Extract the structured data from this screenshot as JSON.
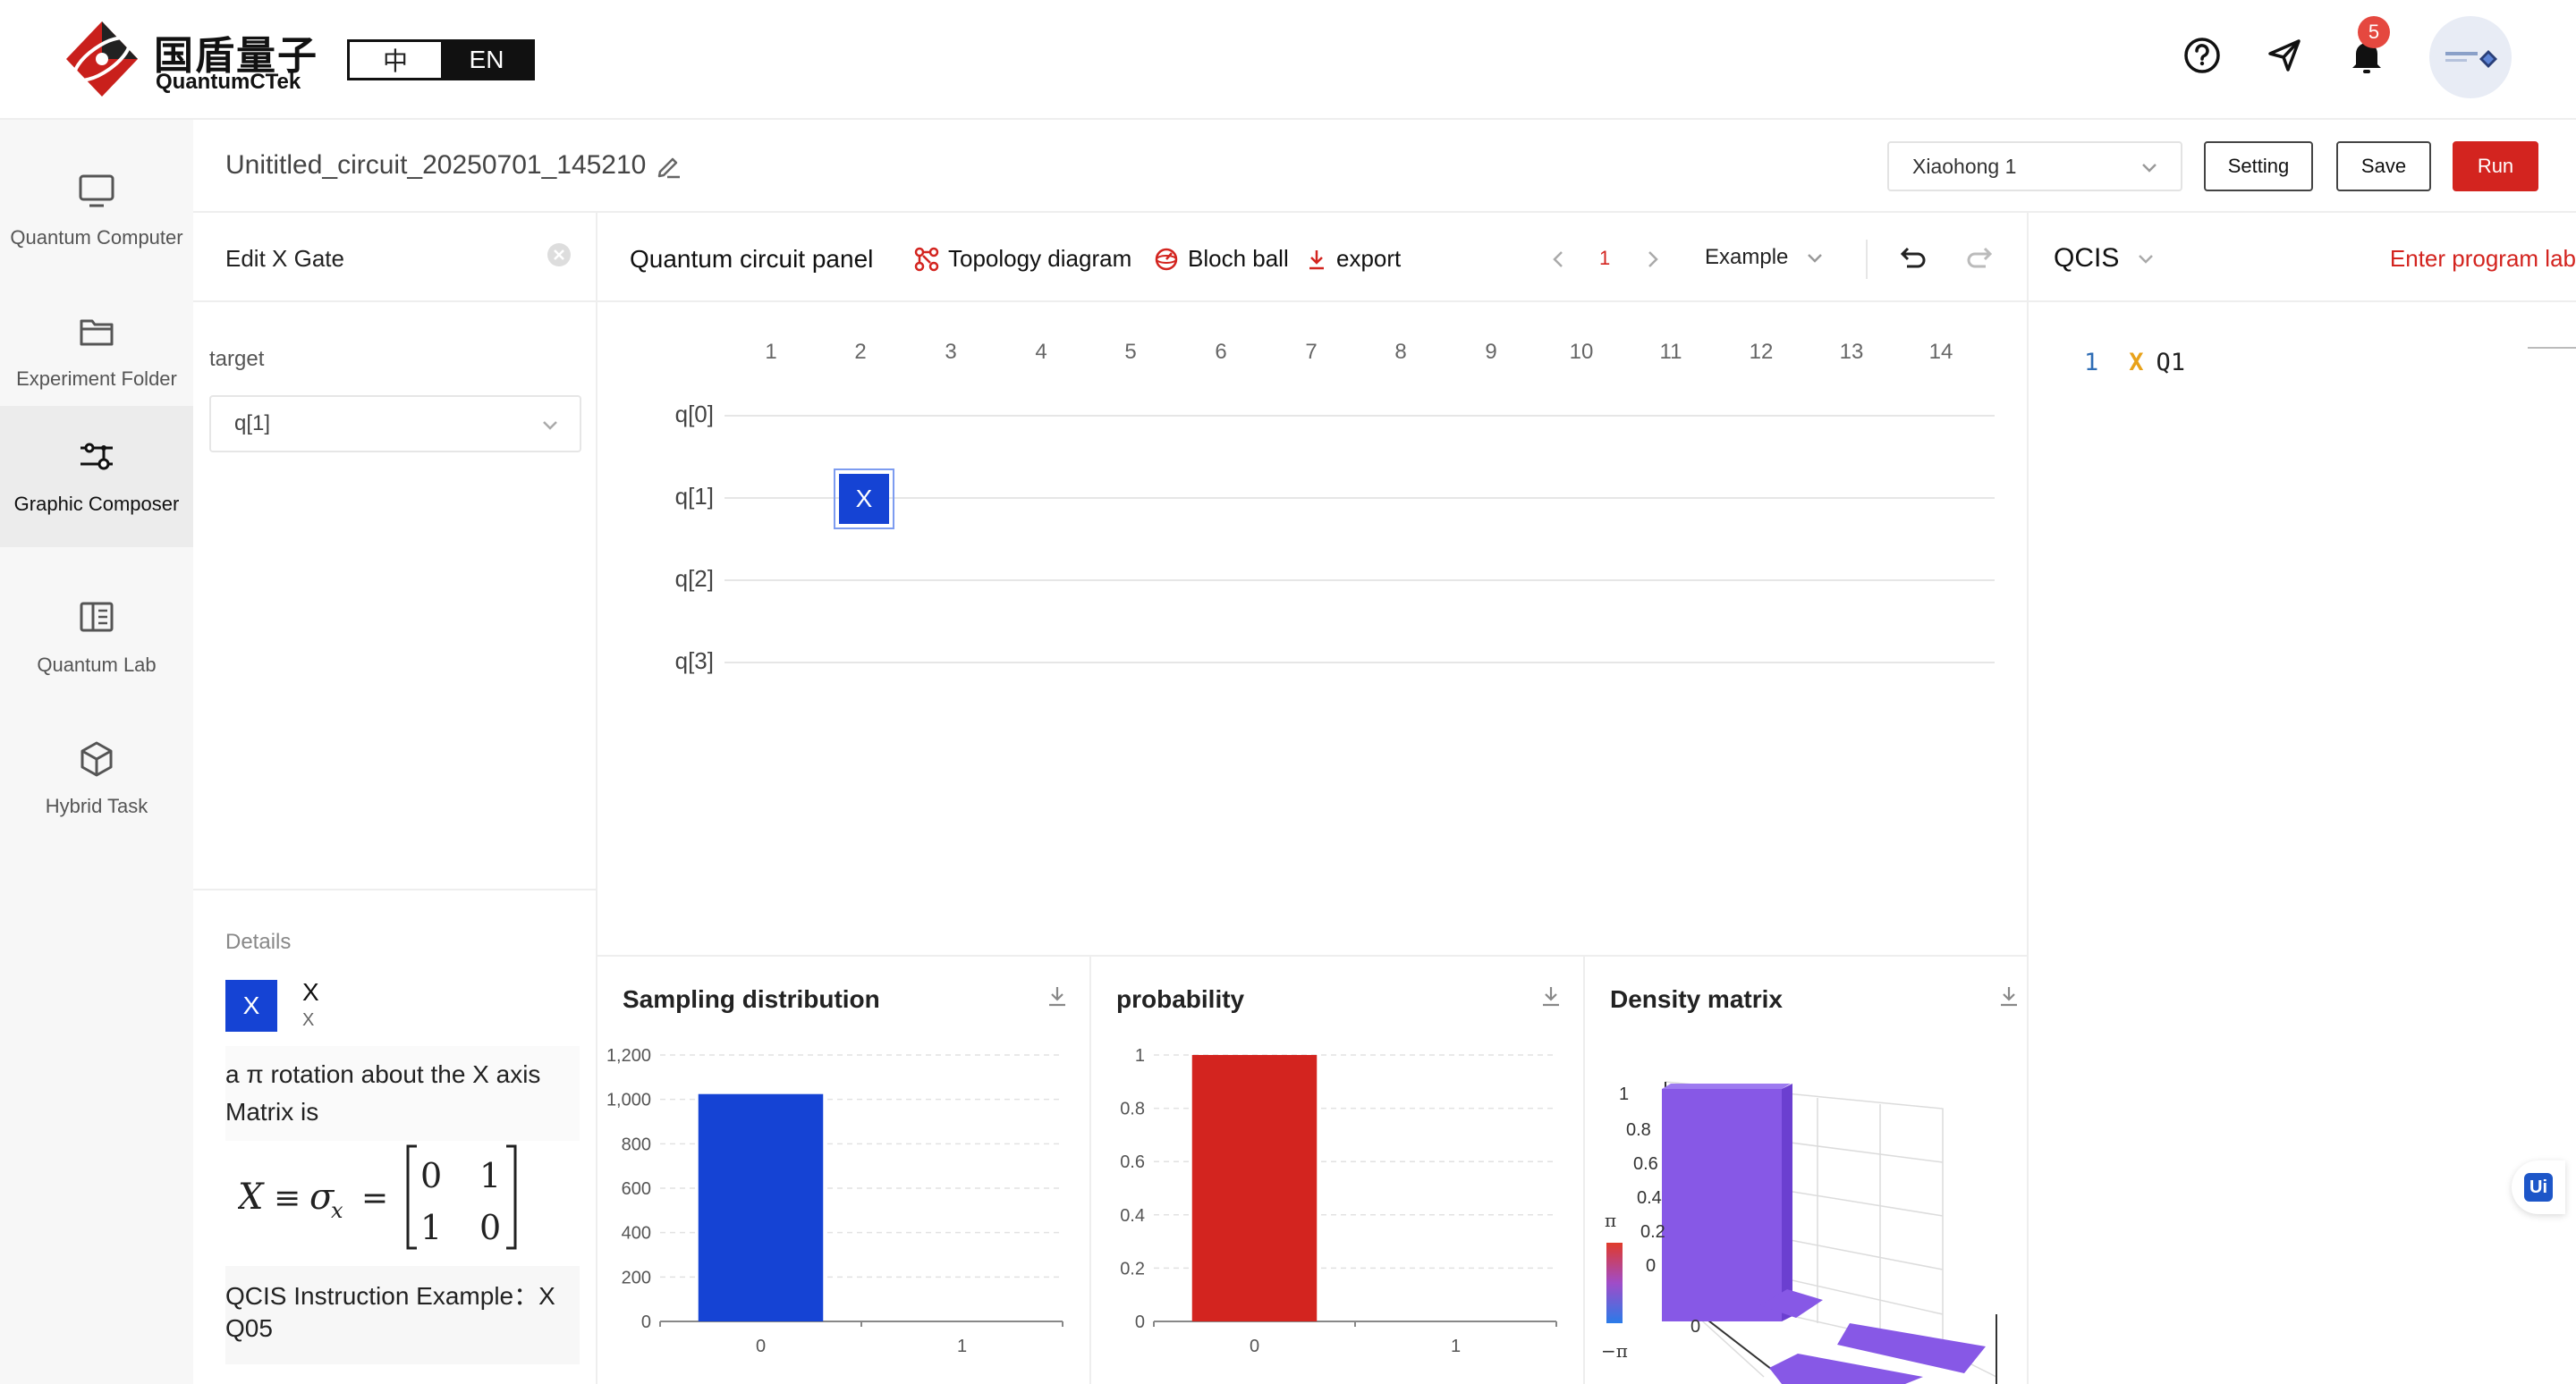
{
  "header": {
    "brand_cn": "国盾量子",
    "brand_en": "QuantumCTek",
    "lang_options": [
      "中",
      "EN"
    ],
    "lang_active": "EN",
    "notification_count": "5",
    "icons": [
      "help-icon",
      "send-icon",
      "bell-icon",
      "avatar"
    ]
  },
  "nav": {
    "items": [
      {
        "label": "Quantum Computer",
        "icon": "monitor-icon"
      },
      {
        "label": "Experiment Folder",
        "icon": "folder-icon"
      },
      {
        "label": "Graphic Composer",
        "icon": "composer-icon"
      },
      {
        "label": "Quantum Lab",
        "icon": "book-icon"
      },
      {
        "label": "Hybrid Task",
        "icon": "cube-icon"
      }
    ],
    "active": "Graphic Composer"
  },
  "titlebar": {
    "circuit_name": "Unititled_circuit_20250701_145210",
    "device": "Xiaohong 1",
    "setting_label": "Setting",
    "save_label": "Save",
    "run_label": "Run"
  },
  "edit_panel": {
    "title": "Edit X Gate",
    "target_label": "target",
    "target_value": "q[1]",
    "details_label": "Details",
    "gate_symbol": "X",
    "gate_name": "X",
    "gate_sub": "X",
    "description_1": "a π rotation about the X axis",
    "description_2": "Matrix is",
    "example_1": "QCIS Instruction Example：X",
    "example_2": "Q05"
  },
  "circuit_panel": {
    "title": "Quantum circuit panel",
    "topology_label": "Topology diagram",
    "bloch_label": "Bloch ball",
    "export_label": "export",
    "page": "1",
    "example_label": "Example",
    "columns": [
      "1",
      "2",
      "3",
      "4",
      "5",
      "6",
      "7",
      "8",
      "9",
      "10",
      "11",
      "12",
      "13",
      "14"
    ],
    "qubits": [
      "q[0]",
      "q[1]",
      "q[2]",
      "q[3]"
    ],
    "gates": [
      {
        "symbol": "X",
        "qubit": "q[1]",
        "column": "2"
      }
    ]
  },
  "qcis_panel": {
    "title": "QCIS",
    "link_label": "Enter program lab",
    "code": [
      {
        "line": "1",
        "op": "X",
        "arg": "Q1"
      }
    ]
  },
  "charts": {
    "sampling_title": "Sampling distribution",
    "probability_title": "probability",
    "density_title": "Density matrix",
    "density_ticks": [
      "1",
      "0.8",
      "0.6",
      "0.4",
      "0.2",
      "0"
    ],
    "density_scale_top": "π",
    "density_scale_bottom": "−π",
    "density_axis_label": "0"
  },
  "chart_data": [
    {
      "type": "bar",
      "title": "Sampling distribution",
      "categories": [
        "0",
        "1"
      ],
      "values": [
        1024,
        0
      ],
      "ylim": [
        0,
        1200
      ],
      "yticks": [
        "0",
        "200",
        "400",
        "600",
        "800",
        "1,000",
        "1,200"
      ],
      "color": "#1543d4",
      "grid": true
    },
    {
      "type": "bar",
      "title": "probability",
      "categories": [
        "0",
        "1"
      ],
      "values": [
        1,
        0
      ],
      "ylim": [
        0,
        1
      ],
      "yticks": [
        "0",
        "0.2",
        "0.4",
        "0.6",
        "0.8",
        "1"
      ],
      "color": "#d3241f",
      "grid": true
    }
  ],
  "colors": {
    "accent_red": "#d3241f",
    "gate_blue": "#1543d4",
    "density_purple": "#8758e6"
  }
}
